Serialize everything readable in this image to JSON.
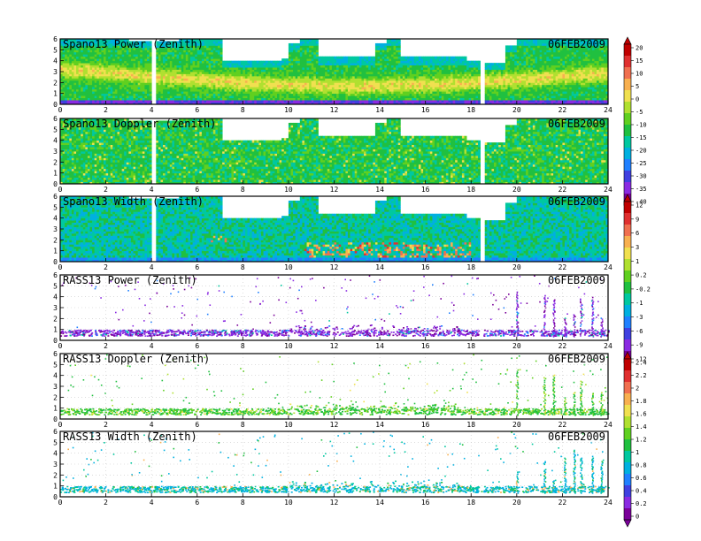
{
  "chart_data": [
    {
      "type": "heatmap",
      "title": "Spano13 Power (Zenith)",
      "date": "06FEB2009",
      "x_ticks": [
        "0",
        "2",
        "4",
        "6",
        "8",
        "10",
        "12",
        "14",
        "16",
        "18",
        "20",
        "22",
        "24"
      ],
      "y_ticks": [
        "0",
        "1",
        "2",
        "3",
        "4",
        "5",
        "6"
      ],
      "xlim": [
        0,
        24
      ],
      "ylim": [
        0,
        6
      ],
      "colorbar": {
        "ticks": [
          "20",
          "15",
          "10",
          "5",
          "0",
          "-5",
          "-10",
          "-15",
          "-20",
          "-25",
          "-30",
          "-35",
          "-40"
        ]
      },
      "gaps_x": [
        4.1,
        18.5
      ],
      "top_profile": [
        [
          0,
          5.9
        ],
        [
          0.5,
          6
        ],
        [
          1.5,
          5.9
        ],
        [
          2.3,
          6
        ],
        [
          3,
          5.8
        ],
        [
          4,
          5.9
        ],
        [
          4.2,
          5.8
        ],
        [
          5.2,
          6
        ],
        [
          6.5,
          5.9
        ],
        [
          7.1,
          4.0
        ],
        [
          8,
          4.0
        ],
        [
          9.7,
          4.2
        ],
        [
          10,
          5.5
        ],
        [
          10.5,
          6
        ],
        [
          11,
          6
        ],
        [
          11.3,
          4.3
        ],
        [
          13.5,
          4.3
        ],
        [
          13.8,
          5.5
        ],
        [
          14.3,
          6
        ],
        [
          14.9,
          4.3
        ],
        [
          17.5,
          4.3
        ],
        [
          17.8,
          4.0
        ],
        [
          18.5,
          3.8
        ],
        [
          19.5,
          5.3
        ],
        [
          20,
          6
        ],
        [
          24,
          6
        ]
      ]
    },
    {
      "type": "heatmap",
      "title": "Spano13 Doppler (Zenith)",
      "date": "06FEB2009",
      "x_ticks": [
        "0",
        "2",
        "4",
        "6",
        "8",
        "10",
        "12",
        "14",
        "16",
        "18",
        "20",
        "22",
        "24"
      ],
      "y_ticks": [
        "0",
        "1",
        "2",
        "3",
        "4",
        "5",
        "6"
      ],
      "xlim": [
        0,
        24
      ],
      "ylim": [
        0,
        6
      ],
      "colorbar": null,
      "gaps_x": [
        4.1,
        18.5
      ],
      "top_profile": [
        [
          0,
          5.9
        ],
        [
          0.5,
          6
        ],
        [
          1.5,
          5.9
        ],
        [
          2.3,
          6
        ],
        [
          3,
          5.8
        ],
        [
          4,
          5.9
        ],
        [
          4.2,
          5.8
        ],
        [
          5.2,
          6
        ],
        [
          6.5,
          5.9
        ],
        [
          7.1,
          4.0
        ],
        [
          8,
          4.0
        ],
        [
          9.7,
          4.2
        ],
        [
          10,
          5.5
        ],
        [
          10.5,
          6
        ],
        [
          11,
          6
        ],
        [
          11.3,
          4.3
        ],
        [
          13.5,
          4.3
        ],
        [
          13.8,
          5.5
        ],
        [
          14.3,
          6
        ],
        [
          14.9,
          4.3
        ],
        [
          17.5,
          4.3
        ],
        [
          17.8,
          4.0
        ],
        [
          18.5,
          3.8
        ],
        [
          19.5,
          5.3
        ],
        [
          20,
          6
        ],
        [
          24,
          6
        ]
      ]
    },
    {
      "type": "heatmap",
      "title": "Spano13 Width (Zenith)",
      "date": "06FEB2009",
      "x_ticks": [
        "0",
        "2",
        "4",
        "6",
        "8",
        "10",
        "12",
        "14",
        "16",
        "18",
        "20",
        "22",
        "24"
      ],
      "y_ticks": [
        "0",
        "1",
        "2",
        "3",
        "4",
        "5",
        "6"
      ],
      "xlim": [
        0,
        24
      ],
      "ylim": [
        0,
        6
      ],
      "colorbar": {
        "ticks": [
          "12",
          "9",
          "6",
          "3",
          "1",
          "0.2",
          "-0.2",
          "-1",
          "-3",
          "-6",
          "-9",
          "-12"
        ]
      },
      "gaps_x": [
        4.1,
        18.5
      ],
      "top_profile": [
        [
          0,
          5.9
        ],
        [
          0.5,
          6
        ],
        [
          1.5,
          5.9
        ],
        [
          2.3,
          6
        ],
        [
          3,
          5.8
        ],
        [
          4,
          5.9
        ],
        [
          4.2,
          5.8
        ],
        [
          5.2,
          6
        ],
        [
          6.5,
          5.9
        ],
        [
          7.1,
          4.0
        ],
        [
          8,
          4.0
        ],
        [
          9.7,
          4.2
        ],
        [
          10,
          5.5
        ],
        [
          10.5,
          6
        ],
        [
          11,
          6
        ],
        [
          11.3,
          4.3
        ],
        [
          13.5,
          4.3
        ],
        [
          13.8,
          5.5
        ],
        [
          14.3,
          6
        ],
        [
          14.9,
          4.3
        ],
        [
          17.5,
          4.3
        ],
        [
          17.8,
          4.0
        ],
        [
          18.5,
          3.8
        ],
        [
          19.5,
          5.3
        ],
        [
          20,
          6
        ],
        [
          24,
          6
        ]
      ]
    },
    {
      "type": "scatter",
      "title": "RASS13 Power (Zenith)",
      "date": "06FEB2009",
      "x_ticks": [
        "0",
        "2",
        "4",
        "6",
        "8",
        "10",
        "12",
        "14",
        "16",
        "18",
        "20",
        "22",
        "24"
      ],
      "y_ticks": [
        "0",
        "1",
        "2",
        "3",
        "4",
        "5",
        "6"
      ],
      "xlim": [
        0,
        24
      ],
      "ylim": [
        0,
        6
      ],
      "colorbar": null
    },
    {
      "type": "scatter",
      "title": "RASS13 Doppler (Zenith)",
      "date": "06FEB2009",
      "x_ticks": [
        "0",
        "2",
        "4",
        "6",
        "8",
        "10",
        "12",
        "14",
        "16",
        "18",
        "20",
        "22",
        "24"
      ],
      "y_ticks": [
        "0",
        "1",
        "2",
        "3",
        "4",
        "5",
        "6"
      ],
      "xlim": [
        0,
        24
      ],
      "ylim": [
        0,
        6
      ],
      "colorbar": {
        "ticks": [
          "2.4",
          "2.2",
          "2",
          "1.8",
          "1.6",
          "1.4",
          "1.2",
          "1",
          "0.8",
          "0.6",
          "0.4",
          "0.2",
          "0"
        ]
      }
    },
    {
      "type": "scatter",
      "title": "RASS13 Width (Zenith)",
      "date": "06FEB2009",
      "x_ticks": [
        "0",
        "2",
        "4",
        "6",
        "8",
        "10",
        "12",
        "14",
        "16",
        "18",
        "20",
        "22",
        "24"
      ],
      "y_ticks": [
        "0",
        "1",
        "2",
        "3",
        "4",
        "5",
        "6"
      ],
      "xlim": [
        0,
        24
      ],
      "ylim": [
        0,
        6
      ],
      "colorbar": null
    }
  ],
  "palette": [
    "#7a0099",
    "#8a2be2",
    "#4040e0",
    "#2080ff",
    "#00b0e0",
    "#00c8a0",
    "#20c040",
    "#60d020",
    "#b0e030",
    "#f0e050",
    "#f8b050",
    "#f07050",
    "#e03030",
    "#c00000"
  ]
}
